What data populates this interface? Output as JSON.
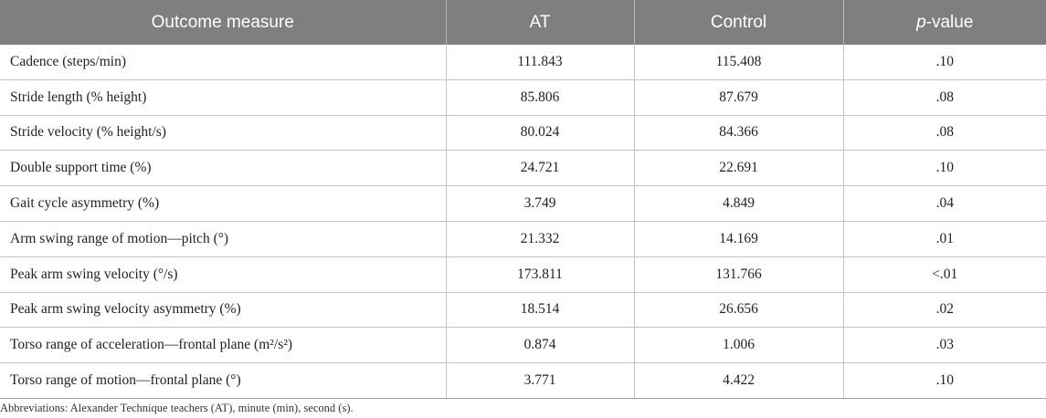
{
  "table": {
    "headers": {
      "measure": "Outcome measure",
      "at": "AT",
      "control": "Control",
      "p_letter": "p",
      "p_suffix": "-value"
    },
    "rows": [
      {
        "measure": "Cadence (steps/min)",
        "at": "111.843",
        "control": "115.408",
        "p": ".10"
      },
      {
        "measure": "Stride length (% height)",
        "at": "85.806",
        "control": "87.679",
        "p": ".08"
      },
      {
        "measure": "Stride velocity (% height/s)",
        "at": "80.024",
        "control": "84.366",
        "p": ".08"
      },
      {
        "measure": "Double support time (%)",
        "at": "24.721",
        "control": "22.691",
        "p": ".10"
      },
      {
        "measure": "Gait cycle asymmetry (%)",
        "at": "3.749",
        "control": "4.849",
        "p": ".04"
      },
      {
        "measure": "Arm swing range of motion—pitch (°)",
        "at": "21.332",
        "control": "14.169",
        "p": ".01"
      },
      {
        "measure": "Peak arm swing velocity (°/s)",
        "at": "173.811",
        "control": "131.766",
        "p": "<.01"
      },
      {
        "measure": "Peak arm swing velocity asymmetry (%)",
        "at": "18.514",
        "control": "26.656",
        "p": ".02"
      },
      {
        "measure": "Torso range of acceleration—frontal plane (m²/s²)",
        "at": "0.874",
        "control": "1.006",
        "p": ".03"
      },
      {
        "measure": "Torso range of motion—frontal plane (°)",
        "at": "3.771",
        "control": "4.422",
        "p": ".10"
      }
    ]
  },
  "footnote": "Abbreviations: Alexander Technique teachers (AT), minute (min), second (s)."
}
